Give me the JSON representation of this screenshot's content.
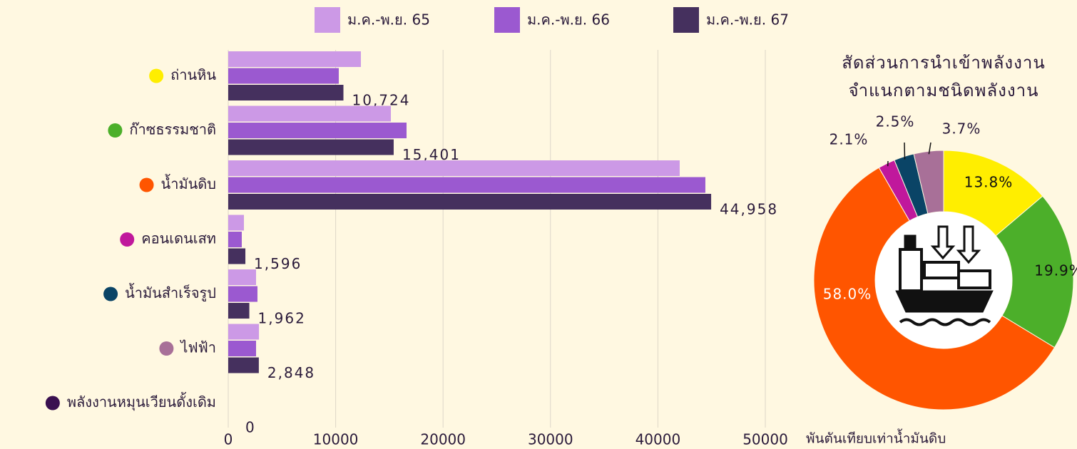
{
  "chart_data": [
    {
      "type": "hbar",
      "categories": [
        "ถ่านหิน",
        "ก๊าซธรรมชาติ",
        "น้ำมันดิบ",
        "คอนเดนเสท",
        "น้ำมันสำเร็จรูป",
        "ไฟฟ้า",
        "พลังงานหมุนเวียนดั้งเดิม"
      ],
      "category_colors": [
        "#ffee00",
        "#4caf2a",
        "#ff5500",
        "#c0189c",
        "#0a4466",
        "#a87098",
        "#3a1050"
      ],
      "series": [
        {
          "name": "ม.ค.-พ.ย. 65",
          "color": "#cc99e6",
          "values": [
            12350,
            15140,
            42030,
            1460,
            2590,
            2860,
            0
          ]
        },
        {
          "name": "ม.ค.-พ.ย. 66",
          "color": "#9b59d0",
          "values": [
            10290,
            16600,
            44420,
            1260,
            2720,
            2590,
            0
          ]
        },
        {
          "name": "ม.ค.-พ.ย. 67",
          "color": "#45305e",
          "values": [
            10724,
            15401,
            44958,
            1596,
            1962,
            2848,
            0
          ],
          "value_labels": [
            "10,724",
            "15,401",
            "44,958",
            "1,596",
            "1,962",
            "2,848",
            "0"
          ]
        }
      ],
      "xlim": [
        0,
        50000
      ],
      "xticks": [
        0,
        10000,
        20000,
        30000,
        40000,
        50000
      ],
      "xlabel": "พันตันเทียบเท่าน้ำมันดิบ",
      "grid": true
    },
    {
      "type": "donut",
      "title": [
        "สัดส่วนการนำเข้าพลังงาน",
        "จำแนกตามชนิดพลังงาน"
      ],
      "values": [
        13.8,
        19.9,
        58.0,
        2.1,
        2.5,
        3.7
      ],
      "value_labels": [
        "13.8%",
        "19.9%",
        "58.0%",
        "2.1%",
        "2.5%",
        "3.7%"
      ],
      "colors": [
        "#ffee00",
        "#4caf2a",
        "#ff5500",
        "#c0189c",
        "#0a4466",
        "#a87098"
      ]
    }
  ]
}
